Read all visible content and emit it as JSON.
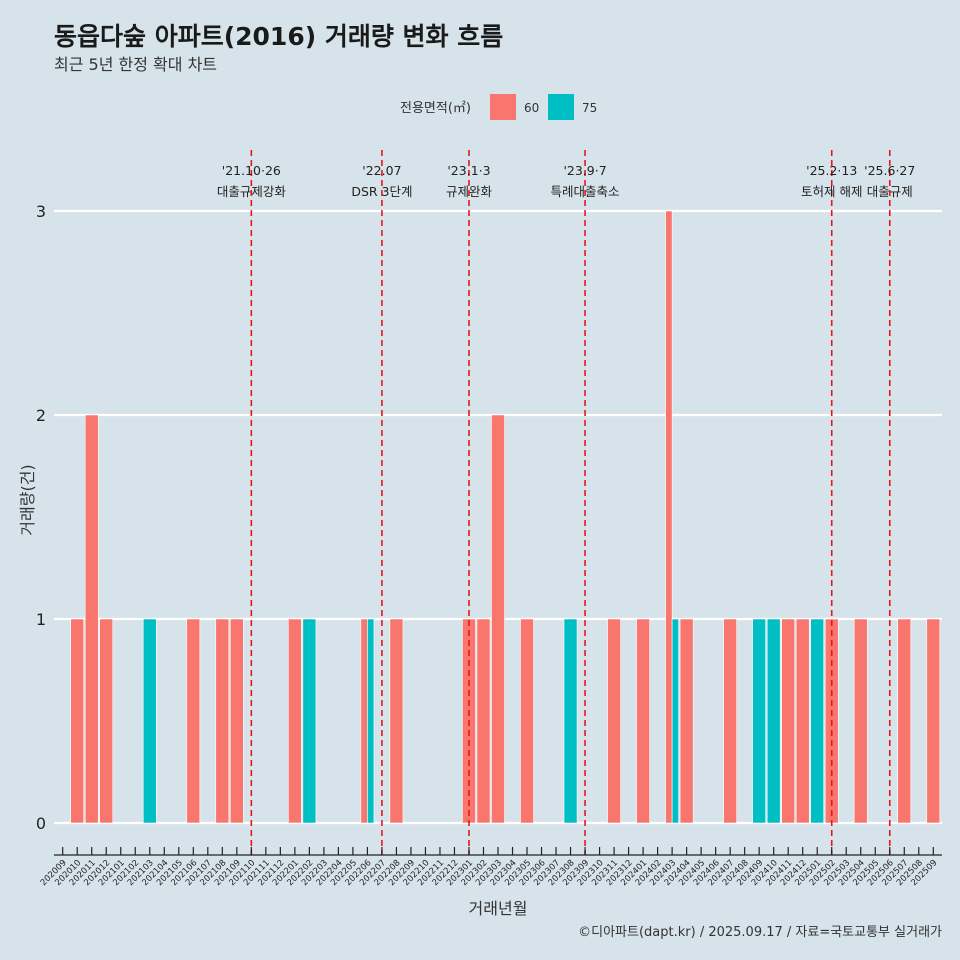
{
  "header": {
    "title": "동읍다숲 아파트(2016) 거래량 변화 흐름",
    "subtitle": "최근 5년 한정 확대 차트"
  },
  "legend": {
    "title": "전용면적(㎡)",
    "items": [
      {
        "label": "60",
        "color": "#f8766d"
      },
      {
        "label": "75",
        "color": "#00bfc4"
      }
    ]
  },
  "caption": "©디아파트(dapt.kr) / 2025.09.17 / 자료=국토교통부 실거래가",
  "chart_data": {
    "type": "bar",
    "title": "동읍다숲 아파트(2016) 거래량 변화 흐름",
    "subtitle": "최근 5년 한정 확대 차트",
    "xlabel": "거래년월",
    "ylabel": "거래량(건)",
    "ylim": [
      0,
      3
    ],
    "yticks": [
      0,
      1,
      2,
      3
    ],
    "grid": true,
    "legend_position": "top",
    "categories": [
      "202009",
      "202010",
      "202011",
      "202012",
      "202101",
      "202102",
      "202103",
      "202104",
      "202105",
      "202106",
      "202107",
      "202108",
      "202109",
      "202110",
      "202111",
      "202112",
      "202201",
      "202202",
      "202203",
      "202204",
      "202205",
      "202206",
      "202207",
      "202208",
      "202209",
      "202210",
      "202211",
      "202212",
      "202301",
      "202302",
      "202303",
      "202304",
      "202305",
      "202306",
      "202307",
      "202308",
      "202309",
      "202310",
      "202311",
      "202312",
      "202401",
      "202402",
      "202403",
      "202404",
      "202405",
      "202406",
      "202407",
      "202408",
      "202409",
      "202410",
      "202411",
      "202412",
      "202501",
      "202502",
      "202503",
      "202504",
      "202505",
      "202506",
      "202507",
      "202508",
      "202509"
    ],
    "series": [
      {
        "name": "60",
        "color": "#f8766d",
        "values": [
          0,
          1,
          2,
          1,
          0,
          0,
          0,
          0,
          0,
          1,
          0,
          1,
          1,
          0,
          0,
          0,
          1,
          0,
          0,
          0,
          0,
          1,
          0,
          1,
          0,
          0,
          0,
          0,
          1,
          1,
          2,
          0,
          1,
          0,
          0,
          0,
          0,
          0,
          1,
          0,
          1,
          0,
          3,
          1,
          0,
          0,
          1,
          0,
          0,
          0,
          1,
          1,
          0,
          1,
          0,
          1,
          0,
          0,
          1,
          0,
          1
        ]
      },
      {
        "name": "75",
        "color": "#00bfc4",
        "values": [
          0,
          0,
          0,
          0,
          0,
          0,
          1,
          0,
          0,
          0,
          0,
          0,
          0,
          0,
          0,
          0,
          0,
          1,
          0,
          0,
          0,
          1,
          0,
          0,
          0,
          0,
          0,
          0,
          0,
          0,
          0,
          0,
          0,
          0,
          0,
          1,
          0,
          0,
          0,
          0,
          0,
          0,
          1,
          0,
          0,
          0,
          0,
          0,
          1,
          1,
          0,
          0,
          1,
          0,
          0,
          0,
          0,
          0,
          0,
          0,
          0
        ]
      }
    ],
    "events": [
      {
        "month": "202110",
        "date": "'21.10·26",
        "label": "대출규제강화"
      },
      {
        "month": "202207",
        "date": "'22.07",
        "label": "DSR 3단계"
      },
      {
        "month": "202301",
        "date": "'23.1·3",
        "label": "규제완화"
      },
      {
        "month": "202309",
        "date": "'23.9·7",
        "label": "특례대출축소"
      },
      {
        "month": "202502",
        "date": "'25.2·13",
        "label": "토허제 해제"
      },
      {
        "month": "202506",
        "date": "'25.6·27",
        "label": "대출규제"
      }
    ]
  }
}
